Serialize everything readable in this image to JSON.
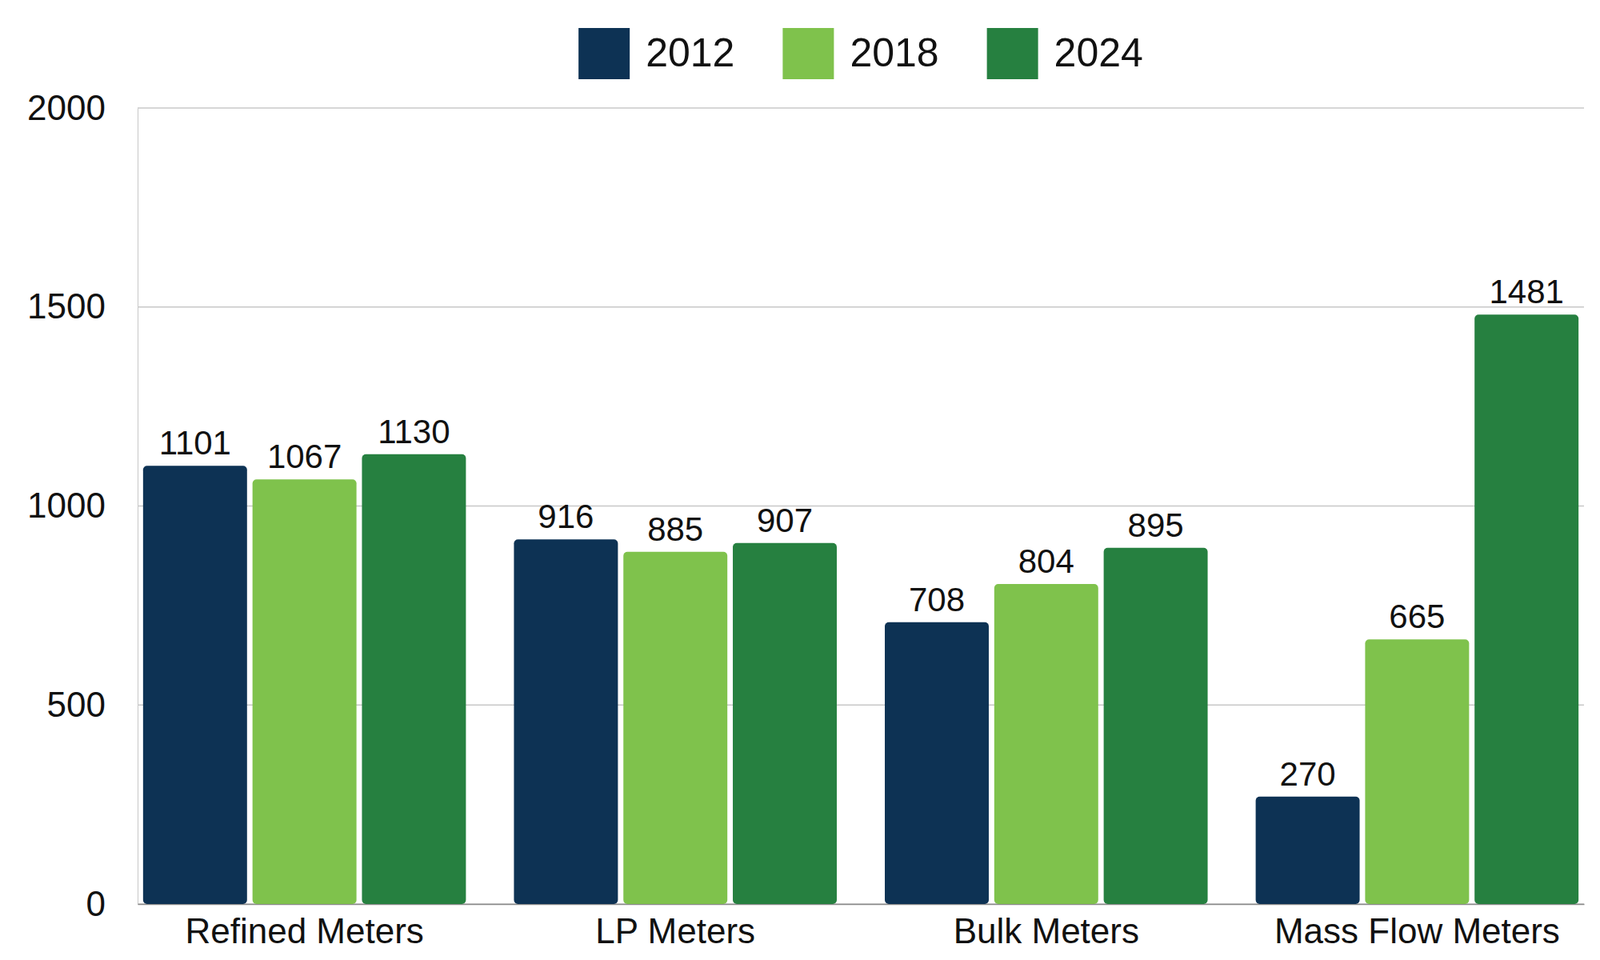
{
  "chart_data": {
    "type": "bar",
    "categories": [
      "Refined Meters",
      "LP Meters",
      "Bulk Meters",
      "Mass Flow Meters"
    ],
    "series": [
      {
        "name": "2012",
        "color": "#0d3254",
        "values": [
          1101,
          916,
          708,
          270
        ]
      },
      {
        "name": "2018",
        "color": "#7fc24c",
        "values": [
          1067,
          885,
          804,
          665
        ]
      },
      {
        "name": "2024",
        "color": "#268040",
        "values": [
          1130,
          907,
          895,
          1481
        ]
      }
    ],
    "ylim": [
      0,
      2000
    ],
    "yticks": [
      0,
      500,
      1000,
      1500,
      2000
    ],
    "grid": true,
    "legend": "top",
    "data_labels": true
  }
}
